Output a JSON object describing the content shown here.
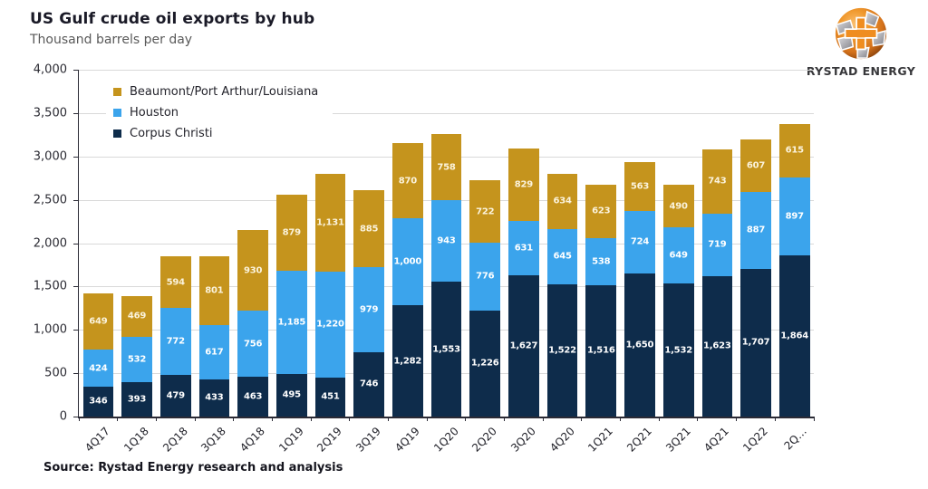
{
  "header": {
    "title": "US Gulf crude oil exports by hub",
    "subtitle": "Thousand barrels per day"
  },
  "logo": {
    "brand": "RYSTAD ENERGY"
  },
  "source": "Source: Rystad Energy research and analysis",
  "chart_data": {
    "type": "bar",
    "stacked": true,
    "title": "US Gulf crude oil exports by hub",
    "ylabel": "Thousand barrels per day",
    "ylim": [
      0,
      4000
    ],
    "ytick_interval": 500,
    "grid": true,
    "legend_position": "top-left-inside",
    "legend_order": [
      "Beaumont/Port Arthur/Louisiana",
      "Houston",
      "Corpus Christi"
    ],
    "categories": [
      "4Q17",
      "1Q18",
      "2Q18",
      "3Q18",
      "4Q18",
      "1Q19",
      "2Q19",
      "3Q19",
      "4Q19",
      "1Q20",
      "2Q20",
      "3Q20",
      "4Q20",
      "1Q21",
      "2Q21",
      "3Q21",
      "4Q21",
      "1Q22",
      "2Q…"
    ],
    "series": [
      {
        "name": "Corpus Christi",
        "color": "#0E2C4B",
        "label_color": "#FFFFFF",
        "values": [
          346,
          393,
          479,
          433,
          463,
          495,
          451,
          746,
          1282,
          1553,
          1226,
          1627,
          1522,
          1516,
          1650,
          1532,
          1623,
          1707,
          1864
        ]
      },
      {
        "name": "Houston",
        "color": "#3BA4EC",
        "label_color": "#FFFFFF",
        "values": [
          424,
          532,
          772,
          617,
          756,
          1185,
          1220,
          979,
          1000,
          943,
          776,
          631,
          645,
          538,
          724,
          649,
          719,
          887,
          897
        ]
      },
      {
        "name": "Beaumont/Port Arthur/Louisiana",
        "color": "#C5941D",
        "label_color": "#FBF3DC",
        "values": [
          649,
          469,
          594,
          801,
          930,
          879,
          1131,
          885,
          870,
          758,
          722,
          829,
          634,
          623,
          563,
          490,
          743,
          607,
          615
        ]
      }
    ],
    "colors": {
      "axis": "#2A2A35",
      "gridline": "#D9D9D9",
      "accent_orange": "#EF8D20"
    }
  }
}
